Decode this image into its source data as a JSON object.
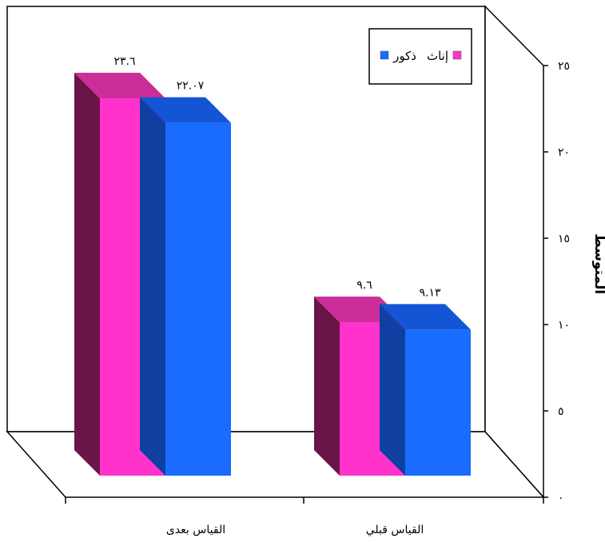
{
  "chart_data": {
    "type": "bar",
    "ylabel": "المتوسط",
    "ylim": [
      0,
      25
    ],
    "yticks": [
      "٠",
      "٥",
      "١٠",
      "١٥",
      "٢٠",
      "٢٥"
    ],
    "tick_values": [
      0,
      5,
      10,
      15,
      20,
      25
    ],
    "categories": [
      "القياس بعدى",
      "القياس قبلي"
    ],
    "series": [
      {
        "name": "إناث",
        "values": [
          23.6,
          9.6
        ],
        "labels": [
          "٢٣.٦",
          "٩.٦"
        ],
        "color": "#ff33cc",
        "side_color": "#6b1447",
        "top_color": "#cc2e99"
      },
      {
        "name": "ذكور",
        "values": [
          22.07,
          9.13
        ],
        "labels": [
          "٢٢.٠٧",
          "٩.١٣"
        ],
        "color": "#1a6cff",
        "side_color": "#0f3fa0",
        "top_color": "#1455d6"
      }
    ],
    "legend": "top-right",
    "grid": false,
    "style": "3d-bar"
  }
}
